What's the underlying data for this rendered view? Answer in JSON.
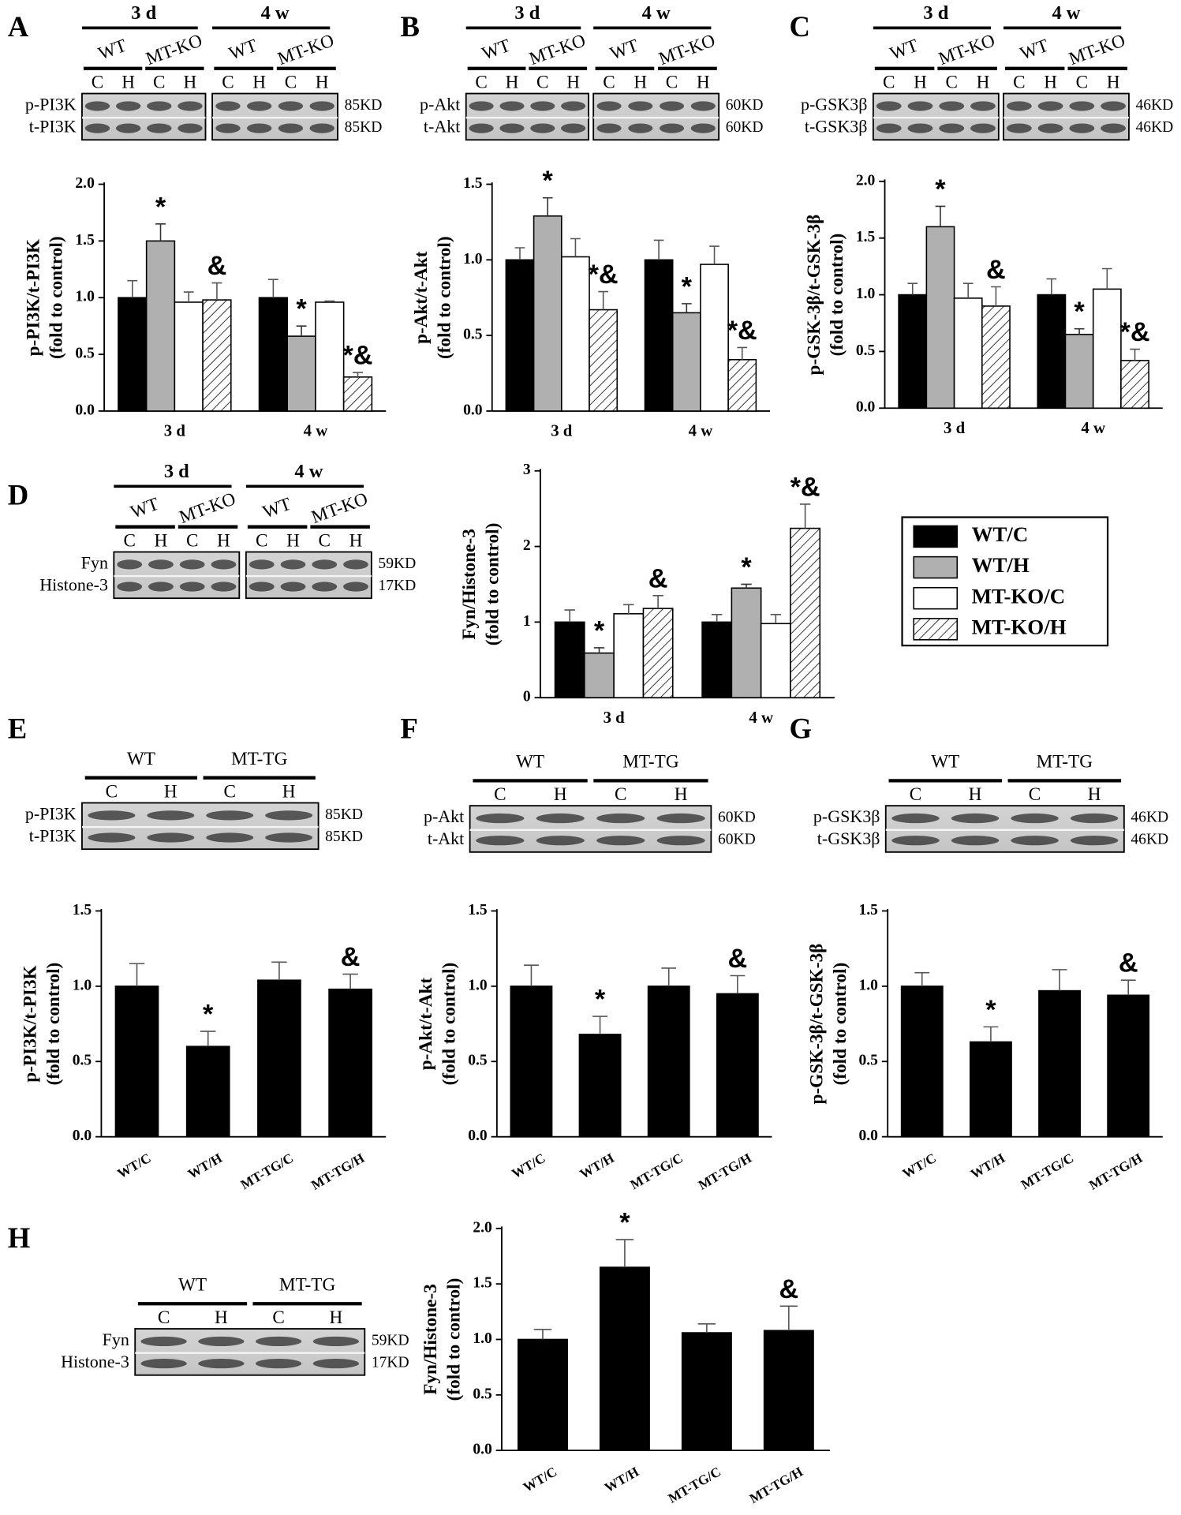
{
  "chart_data": [
    {
      "type": "bar",
      "ylabel": [
        "p-PI3K/t-PI3K",
        "(fold to control)"
      ],
      "categories": [
        "3 d",
        "4 w"
      ],
      "series": [
        {
          "color": "#000000",
          "values": [
            1.0,
            1.0
          ],
          "errors": [
            0.15,
            0.16
          ],
          "annotations": [
            null,
            null
          ]
        },
        {
          "color": "#b0b0b0",
          "values": [
            1.5,
            0.66
          ],
          "errors": [
            0.15,
            0.09
          ],
          "annotations": [
            "*",
            "*"
          ]
        },
        {
          "color": "#ffffff",
          "values": [
            0.96,
            0.96
          ],
          "errors": [
            0.09,
            0.01
          ],
          "annotations": [
            null,
            null
          ]
        },
        {
          "color": "#ffffff",
          "hatch": true,
          "values": [
            0.98,
            0.3
          ],
          "errors": [
            0.15,
            0.04
          ],
          "annotations": [
            "&",
            "*&"
          ]
        }
      ],
      "ylim": [
        0,
        2
      ],
      "yticks": [
        {
          "value": 0,
          "label": "0.0"
        },
        0.5,
        {
          "value": 1,
          "label": "1.0"
        },
        1.5,
        {
          "value": 2,
          "label": "2.0"
        }
      ]
    },
    {
      "type": "bar",
      "ylabel": [
        "p-Akt/t-Akt",
        "(fold to control)"
      ],
      "categories": [
        "3 d",
        "4 w"
      ],
      "series": [
        {
          "color": "#000000",
          "values": [
            1.0,
            1.0
          ],
          "errors": [
            0.08,
            0.13
          ],
          "annotations": [
            null,
            null
          ]
        },
        {
          "color": "#b0b0b0",
          "values": [
            1.29,
            0.65
          ],
          "errors": [
            0.12,
            0.06
          ],
          "annotations": [
            "*",
            "*"
          ]
        },
        {
          "color": "#ffffff",
          "values": [
            1.02,
            0.97
          ],
          "errors": [
            0.12,
            0.12
          ],
          "annotations": [
            null,
            null
          ]
        },
        {
          "color": "#ffffff",
          "hatch": true,
          "values": [
            0.67,
            0.34
          ],
          "errors": [
            0.12,
            0.08
          ],
          "annotations": [
            "*&",
            "*&"
          ]
        }
      ],
      "ylim": [
        0,
        1.5
      ],
      "yticks": [
        {
          "value": 0,
          "label": "0.0"
        },
        0.5,
        {
          "value": 1,
          "label": "1.0"
        },
        1.5
      ]
    },
    {
      "type": "bar",
      "ylabel": [
        "p-GSK-3β/t-GSK-3β",
        "(fold to control)"
      ],
      "categories": [
        "3 d",
        "4 w"
      ],
      "series": [
        {
          "color": "#000000",
          "values": [
            1.0,
            1.0
          ],
          "errors": [
            0.1,
            0.14
          ],
          "annotations": [
            null,
            null
          ]
        },
        {
          "color": "#b0b0b0",
          "values": [
            1.6,
            0.65
          ],
          "errors": [
            0.18,
            0.05
          ],
          "annotations": [
            "*",
            "*"
          ]
        },
        {
          "color": "#ffffff",
          "values": [
            0.97,
            1.05
          ],
          "errors": [
            0.13,
            0.18
          ],
          "annotations": [
            null,
            null
          ]
        },
        {
          "color": "#ffffff",
          "hatch": true,
          "values": [
            0.9,
            0.42
          ],
          "errors": [
            0.17,
            0.1
          ],
          "annotations": [
            "&",
            "*&"
          ]
        }
      ],
      "ylim": [
        0,
        2
      ],
      "yticks": [
        {
          "value": 0,
          "label": "0.0"
        },
        0.5,
        {
          "value": 1,
          "label": "1.0"
        },
        1.5,
        {
          "value": 2,
          "label": "2.0"
        }
      ]
    },
    {
      "type": "bar",
      "ylabel": [
        "Fyn/Histone-3",
        "(fold to control)"
      ],
      "categories": [
        "3 d",
        "4 w"
      ],
      "legend": "right",
      "series": [
        {
          "name": "WT/C",
          "color": "#000000",
          "values": [
            1.0,
            1.0
          ],
          "errors": [
            0.16,
            0.1
          ],
          "annotations": [
            null,
            null
          ]
        },
        {
          "name": "WT/H",
          "color": "#b0b0b0",
          "values": [
            0.59,
            1.45
          ],
          "errors": [
            0.07,
            0.05
          ],
          "annotations": [
            "*",
            "*"
          ]
        },
        {
          "name": "MT-KO/C",
          "color": "#ffffff",
          "values": [
            1.11,
            0.98
          ],
          "errors": [
            0.12,
            0.12
          ],
          "annotations": [
            null,
            null
          ]
        },
        {
          "name": "MT-KO/H",
          "color": "#ffffff",
          "hatch": true,
          "values": [
            1.18,
            2.24
          ],
          "errors": [
            0.17,
            0.32
          ],
          "annotations": [
            "&",
            "*&"
          ]
        }
      ],
      "ylim": [
        0,
        3
      ],
      "yticks": [
        0,
        1,
        2,
        3
      ]
    },
    {
      "type": "bar",
      "ylabel": [
        "p-PI3K/t-PI3K",
        "(fold to control)"
      ],
      "categories": [
        "WT/C",
        "WT/H",
        "MT-TG/C",
        "MT-TG/H"
      ],
      "color": "#000000",
      "values": [
        1.0,
        0.6,
        1.04,
        0.98
      ],
      "errors": [
        0.15,
        0.1,
        0.12,
        0.1
      ],
      "annotations": [
        null,
        "*",
        null,
        "&"
      ],
      "ylim": [
        0,
        1.5
      ],
      "yticks": [
        {
          "value": 0,
          "label": "0.0"
        },
        0.5,
        {
          "value": 1,
          "label": "1.0"
        },
        1.5
      ]
    },
    {
      "type": "bar",
      "ylabel": [
        "p-Akt/t-Akt",
        "(fold to control)"
      ],
      "categories": [
        "WT/C",
        "WT/H",
        "MT-TG/C",
        "MT-TG/H"
      ],
      "color": "#000000",
      "values": [
        1.0,
        0.68,
        1.0,
        0.95
      ],
      "errors": [
        0.14,
        0.12,
        0.12,
        0.12
      ],
      "annotations": [
        null,
        "*",
        null,
        "&"
      ],
      "ylim": [
        0,
        1.5
      ],
      "yticks": [
        {
          "value": 0,
          "label": "0.0"
        },
        0.5,
        {
          "value": 1,
          "label": "1.0"
        },
        1.5
      ]
    },
    {
      "type": "bar",
      "ylabel": [
        "p-GSK-3β/t-GSK-3β",
        "(fold to control)"
      ],
      "categories": [
        "WT/C",
        "WT/H",
        "MT-TG/C",
        "MT-TG/H"
      ],
      "color": "#000000",
      "values": [
        1.0,
        0.63,
        0.97,
        0.94
      ],
      "errors": [
        0.09,
        0.1,
        0.14,
        0.1
      ],
      "annotations": [
        null,
        "*",
        null,
        "&"
      ],
      "ylim": [
        0,
        1.5
      ],
      "yticks": [
        {
          "value": 0,
          "label": "0.0"
        },
        0.5,
        {
          "value": 1,
          "label": "1.0"
        },
        1.5
      ]
    },
    {
      "type": "bar",
      "ylabel": [
        "Fyn/Histone-3",
        "(fold to control)"
      ],
      "categories": [
        "WT/C",
        "WT/H",
        "MT-TG/C",
        "MT-TG/H"
      ],
      "color": "#000000",
      "values": [
        1.0,
        1.65,
        1.06,
        1.08
      ],
      "errors": [
        0.09,
        0.25,
        0.08,
        0.22
      ],
      "annotations": [
        null,
        "*",
        null,
        "&"
      ],
      "ylim": [
        0,
        2
      ],
      "yticks": [
        {
          "value": 0,
          "label": "0.0"
        },
        0.5,
        {
          "value": 1,
          "label": "1.0"
        },
        1.5,
        {
          "value": 2,
          "label": "2.0"
        }
      ]
    }
  ],
  "blots": [
    {
      "letter": "A",
      "times": [
        "3 d",
        "4 w"
      ],
      "groups": [
        "WT",
        "MT-KO",
        "WT",
        "MT-KO"
      ],
      "lanes": [
        "C",
        "H",
        "C",
        "H",
        "C",
        "H",
        "C",
        "H"
      ],
      "rows": [
        "p-PI3K",
        "t-PI3K"
      ],
      "sizes": [
        "85KD",
        "85KD"
      ]
    },
    {
      "letter": "B",
      "times": [
        "3 d",
        "4 w"
      ],
      "groups": [
        "WT",
        "MT-KO",
        "WT",
        "MT-KO"
      ],
      "lanes": [
        "C",
        "H",
        "C",
        "H",
        "C",
        "H",
        "C",
        "H"
      ],
      "rows": [
        "p-Akt",
        "t-Akt"
      ],
      "sizes": [
        "60KD",
        "60KD"
      ]
    },
    {
      "letter": "C",
      "times": [
        "3 d",
        "4 w"
      ],
      "groups": [
        "WT",
        "MT-KO",
        "WT",
        "MT-KO"
      ],
      "lanes": [
        "C",
        "H",
        "C",
        "H",
        "C",
        "H",
        "C",
        "H"
      ],
      "rows": [
        "p-GSK3β",
        "t-GSK3β"
      ],
      "sizes": [
        "46KD",
        "46KD"
      ]
    },
    {
      "letter": "D",
      "times": [
        "3 d",
        "4 w"
      ],
      "groups": [
        "WT",
        "MT-KO",
        "WT",
        "MT-KO"
      ],
      "lanes": [
        "C",
        "H",
        "C",
        "H",
        "C",
        "H",
        "C",
        "H"
      ],
      "rows": [
        "Fyn",
        "Histone-3"
      ],
      "sizes": [
        "59KD",
        "17KD"
      ]
    },
    {
      "letter": "E",
      "groups": [
        "WT",
        "MT-TG"
      ],
      "lanes": [
        "C",
        "H",
        "C",
        "H"
      ],
      "rows": [
        "p-PI3K",
        "t-PI3K"
      ],
      "sizes": [
        "85KD",
        "85KD"
      ]
    },
    {
      "letter": "F",
      "groups": [
        "WT",
        "MT-TG"
      ],
      "lanes": [
        "C",
        "H",
        "C",
        "H"
      ],
      "rows": [
        "p-Akt",
        "t-Akt"
      ],
      "sizes": [
        "60KD",
        "60KD"
      ]
    },
    {
      "letter": "G",
      "groups": [
        "WT",
        "MT-TG"
      ],
      "lanes": [
        "C",
        "H",
        "C",
        "H"
      ],
      "rows": [
        "p-GSK3β",
        "t-GSK3β"
      ],
      "sizes": [
        "46KD",
        "46KD"
      ]
    },
    {
      "letter": "H",
      "groups": [
        "WT",
        "MT-TG"
      ],
      "lanes": [
        "C",
        "H",
        "C",
        "H"
      ],
      "rows": [
        "Fyn",
        "Histone-3"
      ],
      "sizes": [
        "59KD",
        "17KD"
      ]
    }
  ]
}
